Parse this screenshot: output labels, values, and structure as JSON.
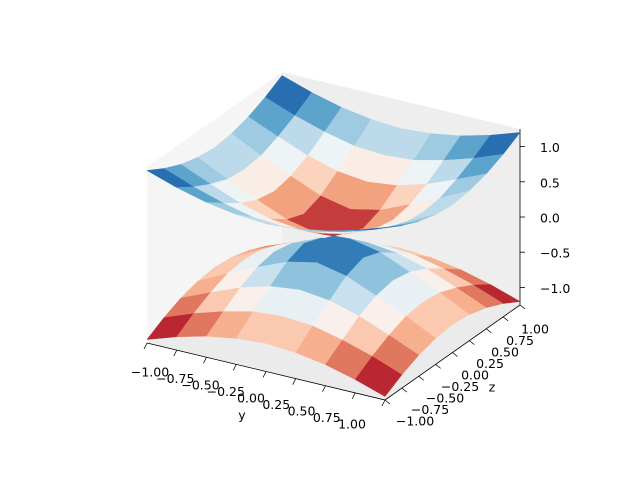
{
  "chart_data": {
    "type": "surface",
    "xlabel": "y",
    "ylabel": "z",
    "x": [
      -1,
      -0.75,
      -0.5,
      -0.25,
      0,
      0.25,
      0.5,
      0.75,
      1
    ],
    "y": [
      -1,
      -0.75,
      -0.5,
      -0.25,
      0,
      0.25,
      0.5,
      0.75,
      1
    ],
    "colormap": "RdBu",
    "series": [
      {
        "z": [
          [
            -1.2,
            -1.06,
            -0.95,
            -0.88,
            -0.85,
            -0.88,
            -0.95,
            -1.06,
            -1.2
          ],
          [
            -1.06,
            -0.9,
            -0.77,
            -0.67,
            -0.64,
            -0.67,
            -0.77,
            -0.9,
            -1.06
          ],
          [
            -0.95,
            -0.77,
            -0.6,
            -0.48,
            -0.43,
            -0.48,
            -0.6,
            -0.77,
            -0.95
          ],
          [
            -0.88,
            -0.67,
            -0.48,
            -0.3,
            -0.21,
            -0.3,
            -0.48,
            -0.67,
            -0.88
          ],
          [
            -0.85,
            -0.64,
            -0.43,
            -0.21,
            0,
            -0.21,
            -0.43,
            -0.64,
            -0.85
          ],
          [
            -0.88,
            -0.67,
            -0.48,
            -0.3,
            -0.21,
            -0.3,
            -0.48,
            -0.67,
            -0.88
          ],
          [
            -0.95,
            -0.77,
            -0.6,
            -0.48,
            -0.43,
            -0.48,
            -0.6,
            -0.77,
            -0.95
          ],
          [
            -1.06,
            -0.9,
            -0.77,
            -0.67,
            -0.64,
            -0.67,
            -0.77,
            -0.9,
            -1.06
          ],
          [
            -1.2,
            -1.06,
            -0.95,
            -0.88,
            -0.85,
            -0.88,
            -0.95,
            -1.06,
            -1.2
          ]
        ]
      },
      {
        "z": [
          [
            1.2,
            1.06,
            0.95,
            0.88,
            0.85,
            0.88,
            0.95,
            1.06,
            1.2
          ],
          [
            1.06,
            0.9,
            0.77,
            0.67,
            0.64,
            0.67,
            0.77,
            0.9,
            1.06
          ],
          [
            0.95,
            0.77,
            0.6,
            0.48,
            0.43,
            0.48,
            0.6,
            0.77,
            0.95
          ],
          [
            0.88,
            0.67,
            0.48,
            0.3,
            0.21,
            0.3,
            0.48,
            0.67,
            0.88
          ],
          [
            0.85,
            0.64,
            0.43,
            0.21,
            0,
            0.21,
            0.43,
            0.64,
            0.85
          ],
          [
            0.88,
            0.67,
            0.48,
            0.3,
            0.21,
            0.3,
            0.48,
            0.67,
            0.88
          ],
          [
            0.95,
            0.77,
            0.6,
            0.48,
            0.43,
            0.48,
            0.6,
            0.77,
            0.95
          ],
          [
            1.06,
            0.9,
            0.77,
            0.67,
            0.64,
            0.67,
            0.77,
            0.9,
            1.06
          ],
          [
            1.2,
            1.06,
            0.95,
            0.88,
            0.85,
            0.88,
            0.95,
            1.06,
            1.2
          ]
        ]
      }
    ],
    "xlim": [
      -1,
      1
    ],
    "ylim": [
      -1,
      1
    ],
    "zlim": [
      -1.25,
      1.25
    ],
    "xticks": [
      {
        "value": -1,
        "label": "−1.00"
      },
      {
        "value": -0.75,
        "label": "−0.75"
      },
      {
        "value": -0.5,
        "label": "−0.50"
      },
      {
        "value": -0.25,
        "label": "−0.25"
      },
      {
        "value": 0,
        "label": "0.00"
      },
      0.25,
      {
        "value": 0.5,
        "label": "0.50"
      },
      0.75,
      {
        "value": 1,
        "label": "1.00"
      }
    ],
    "yticks": [
      {
        "value": -1,
        "label": "−1.00"
      },
      {
        "value": -0.75,
        "label": "−0.75"
      },
      {
        "value": -0.5,
        "label": "−0.50"
      },
      {
        "value": -0.25,
        "label": "−0.25"
      },
      {
        "value": 0,
        "label": "0.00"
      },
      0.25,
      {
        "value": 0.5,
        "label": "0.50"
      },
      0.75,
      {
        "value": 1,
        "label": "1.00"
      }
    ],
    "zticks": [
      {
        "value": -1,
        "label": "−1.0"
      },
      {
        "value": -0.5,
        "label": "−0.5"
      },
      {
        "value": 0,
        "label": "0.0"
      },
      0.5,
      {
        "value": 1,
        "label": "1.0"
      }
    ]
  }
}
